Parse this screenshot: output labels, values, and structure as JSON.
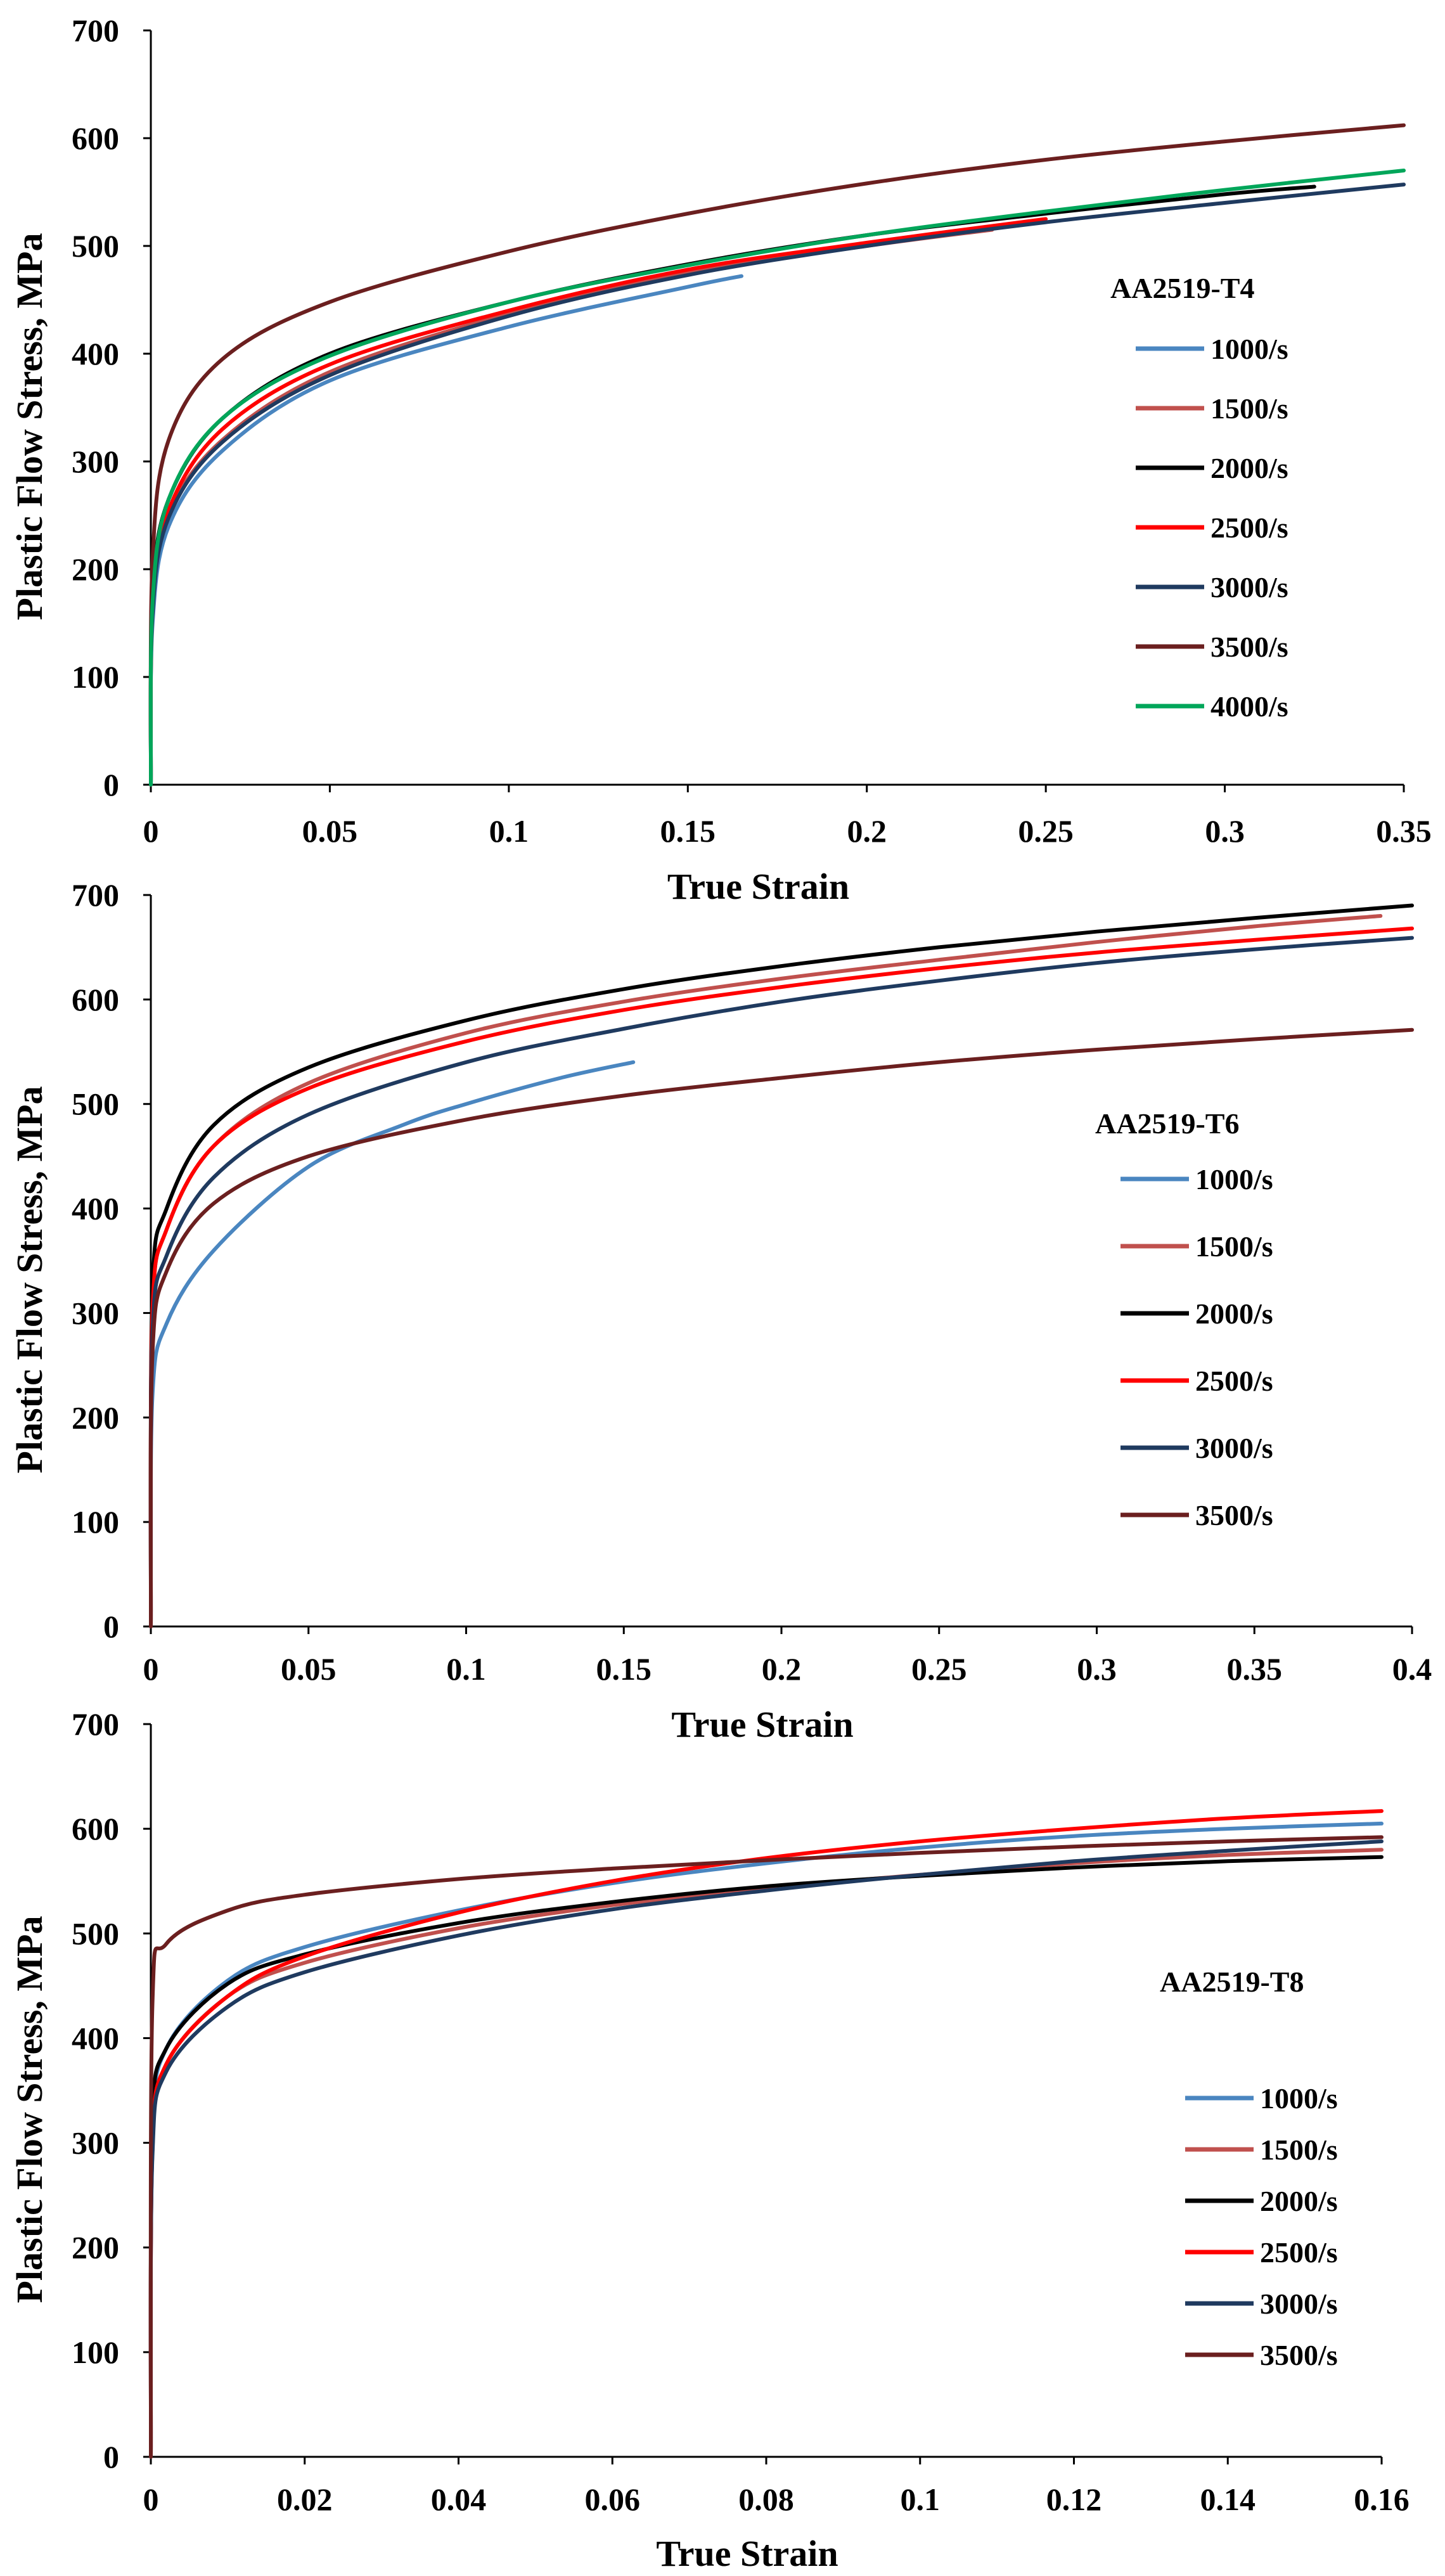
{
  "chart_data": [
    {
      "type": "line",
      "title": "AA2519-T4",
      "xlabel": "True Strain",
      "ylabel": "Plastic Flow Stress, MPa",
      "xlim": [
        0,
        0.35
      ],
      "ylim": [
        0,
        700
      ],
      "xticks": [
        0,
        0.05,
        0.1,
        0.15,
        0.2,
        0.25,
        0.3,
        0.35
      ],
      "xtick_labels": [
        "0",
        "0.05",
        "0.1",
        "0.15",
        "0.2",
        "0.25",
        "0.3",
        "0.35"
      ],
      "yticks": [
        0,
        100,
        200,
        300,
        400,
        500,
        600,
        700
      ],
      "ytick_labels": [
        "0",
        "100",
        "200",
        "300",
        "400",
        "500",
        "600",
        "700"
      ],
      "legend_title": "AA2519-T4",
      "series": [
        {
          "name": "1000/s",
          "color": "#4a86c0",
          "x": [
            0,
            0.0005,
            0.005,
            0.02,
            0.05,
            0.1,
            0.15,
            0.165
          ],
          "y": [
            0,
            150,
            240,
            310,
            375,
            425,
            462,
            472
          ]
        },
        {
          "name": "1500/s",
          "color": "#c0504d",
          "x": [
            0,
            0.0005,
            0.005,
            0.02,
            0.05,
            0.1,
            0.15,
            0.2,
            0.235
          ],
          "y": [
            0,
            160,
            250,
            320,
            383,
            437,
            475,
            500,
            515
          ]
        },
        {
          "name": "2000/s",
          "color": "#000000",
          "x": [
            0,
            0.0005,
            0.005,
            0.02,
            0.05,
            0.1,
            0.15,
            0.2,
            0.25,
            0.3,
            0.325
          ],
          "y": [
            0,
            175,
            265,
            340,
            400,
            448,
            483,
            510,
            530,
            548,
            555
          ]
        },
        {
          "name": "2500/s",
          "color": "#ff0000",
          "x": [
            0,
            0.0005,
            0.005,
            0.02,
            0.05,
            0.1,
            0.15,
            0.2,
            0.25
          ],
          "y": [
            0,
            165,
            255,
            330,
            390,
            440,
            478,
            503,
            525
          ]
        },
        {
          "name": "3000/s",
          "color": "#1f3a5f",
          "x": [
            0,
            0.0005,
            0.005,
            0.02,
            0.05,
            0.1,
            0.15,
            0.2,
            0.25,
            0.3,
            0.35
          ],
          "y": [
            0,
            160,
            248,
            318,
            380,
            435,
            473,
            500,
            522,
            540,
            557
          ]
        },
        {
          "name": "3500/s",
          "color": "#6b1f1f",
          "x": [
            0,
            0.0005,
            0.005,
            0.02,
            0.05,
            0.1,
            0.15,
            0.2,
            0.25,
            0.3,
            0.35
          ],
          "y": [
            0,
            210,
            320,
            395,
            448,
            495,
            530,
            558,
            580,
            597,
            612
          ]
        },
        {
          "name": "4000/s",
          "color": "#00a65a",
          "x": [
            0,
            0.0005,
            0.005,
            0.02,
            0.05,
            0.1,
            0.15,
            0.2,
            0.25,
            0.3,
            0.35
          ],
          "y": [
            0,
            170,
            265,
            340,
            398,
            448,
            482,
            510,
            532,
            552,
            570
          ]
        }
      ]
    },
    {
      "type": "line",
      "title": "AA2519-T6",
      "xlabel": "True Strain",
      "ylabel": "Plastic Flow Stress, MPa",
      "xlim": [
        0,
        0.4
      ],
      "ylim": [
        0,
        700
      ],
      "xticks": [
        0,
        0.05,
        0.1,
        0.15,
        0.2,
        0.25,
        0.3,
        0.35,
        0.4
      ],
      "xtick_labels": [
        "0",
        "0.05",
        "0.1",
        "0.15",
        "0.2",
        "0.25",
        "0.3",
        "0.35",
        "0.4"
      ],
      "yticks": [
        0,
        100,
        200,
        300,
        400,
        500,
        600,
        700
      ],
      "ytick_labels": [
        "0",
        "100",
        "200",
        "300",
        "400",
        "500",
        "600",
        "700"
      ],
      "legend_title": "AA2519-T6",
      "series": [
        {
          "name": "1000/s",
          "color": "#4a86c0",
          "x": [
            0,
            0.0005,
            0.005,
            0.02,
            0.05,
            0.08,
            0.1,
            0.13,
            0.153
          ],
          "y": [
            0,
            220,
            290,
            360,
            440,
            480,
            500,
            525,
            540
          ]
        },
        {
          "name": "1500/s",
          "color": "#c0504d",
          "x": [
            0,
            0.0005,
            0.005,
            0.02,
            0.05,
            0.1,
            0.15,
            0.2,
            0.25,
            0.3,
            0.35,
            0.39
          ],
          "y": [
            0,
            300,
            380,
            460,
            520,
            568,
            598,
            620,
            638,
            655,
            670,
            680
          ]
        },
        {
          "name": "2000/s",
          "color": "#000000",
          "x": [
            0,
            0.0005,
            0.005,
            0.02,
            0.05,
            0.1,
            0.15,
            0.2,
            0.25,
            0.3,
            0.35,
            0.4
          ],
          "y": [
            0,
            320,
            400,
            480,
            535,
            580,
            610,
            632,
            650,
            665,
            678,
            690
          ]
        },
        {
          "name": "2500/s",
          "color": "#ff0000",
          "x": [
            0,
            0.0005,
            0.005,
            0.02,
            0.05,
            0.1,
            0.15,
            0.2,
            0.25,
            0.3,
            0.35,
            0.4
          ],
          "y": [
            0,
            300,
            380,
            460,
            515,
            560,
            590,
            612,
            630,
            645,
            657,
            668
          ]
        },
        {
          "name": "3000/s",
          "color": "#1f3a5f",
          "x": [
            0,
            0.0005,
            0.005,
            0.02,
            0.05,
            0.1,
            0.15,
            0.2,
            0.25,
            0.3,
            0.35,
            0.4
          ],
          "y": [
            0,
            280,
            355,
            430,
            490,
            540,
            572,
            598,
            618,
            635,
            648,
            659
          ]
        },
        {
          "name": "3500/s",
          "color": "#6b1f1f",
          "x": [
            0,
            0.0005,
            0.005,
            0.02,
            0.05,
            0.1,
            0.15,
            0.2,
            0.25,
            0.3,
            0.35,
            0.4
          ],
          "y": [
            0,
            260,
            340,
            405,
            450,
            485,
            508,
            525,
            540,
            552,
            562,
            571
          ]
        }
      ]
    },
    {
      "type": "line",
      "title": "AA2519-T8",
      "xlabel": "True Strain",
      "ylabel": "Plastic Flow Stress, MPa",
      "xlim": [
        0,
        0.16
      ],
      "ylim": [
        0,
        700
      ],
      "xticks": [
        0,
        0.02,
        0.04,
        0.06,
        0.08,
        0.1,
        0.12,
        0.14,
        0.16
      ],
      "xtick_labels": [
        "0",
        "0.02",
        "0.04",
        "0.06",
        "0.08",
        "0.1",
        "0.12",
        "0.14",
        "0.16"
      ],
      "yticks": [
        0,
        100,
        200,
        300,
        400,
        500,
        600,
        700
      ],
      "ytick_labels": [
        "0",
        "100",
        "200",
        "300",
        "400",
        "500",
        "600",
        "700"
      ],
      "legend_title": "AA2519-T8",
      "series": [
        {
          "name": "1000/s",
          "color": "#4a86c0",
          "x": [
            0,
            0.0002,
            0.002,
            0.01,
            0.02,
            0.04,
            0.06,
            0.08,
            0.1,
            0.12,
            0.14,
            0.16
          ],
          "y": [
            0,
            300,
            390,
            455,
            487,
            522,
            548,
            567,
            582,
            593,
            600,
            605
          ]
        },
        {
          "name": "1500/s",
          "color": "#c0504d",
          "x": [
            0,
            0.0002,
            0.002,
            0.01,
            0.02,
            0.04,
            0.06,
            0.08,
            0.1,
            0.12,
            0.14,
            0.16
          ],
          "y": [
            0,
            290,
            375,
            440,
            472,
            505,
            527,
            543,
            556,
            567,
            575,
            580
          ]
        },
        {
          "name": "2000/s",
          "color": "#000000",
          "x": [
            0,
            0.0002,
            0.002,
            0.01,
            0.02,
            0.04,
            0.06,
            0.08,
            0.1,
            0.12,
            0.14,
            0.16
          ],
          "y": [
            0,
            310,
            390,
            452,
            480,
            510,
            530,
            545,
            555,
            563,
            569,
            573
          ]
        },
        {
          "name": "2500/s",
          "color": "#ff0000",
          "x": [
            0,
            0.0002,
            0.002,
            0.01,
            0.02,
            0.04,
            0.06,
            0.08,
            0.1,
            0.12,
            0.14,
            0.16
          ],
          "y": [
            0,
            290,
            375,
            440,
            478,
            520,
            550,
            572,
            588,
            600,
            610,
            617
          ]
        },
        {
          "name": "3000/s",
          "color": "#1f3a5f",
          "x": [
            0,
            0.0002,
            0.002,
            0.01,
            0.02,
            0.04,
            0.06,
            0.08,
            0.1,
            0.12,
            0.14,
            0.16
          ],
          "y": [
            0,
            285,
            368,
            430,
            463,
            498,
            523,
            541,
            556,
            569,
            579,
            588
          ]
        },
        {
          "name": "3500/s",
          "color": "#6b1f1f",
          "x": [
            0,
            0.0002,
            0.002,
            0.01,
            0.02,
            0.04,
            0.06,
            0.08,
            0.1,
            0.12,
            0.14,
            0.16
          ],
          "y": [
            0,
            430,
            490,
            522,
            537,
            552,
            562,
            570,
            577,
            583,
            588,
            592
          ]
        }
      ]
    }
  ]
}
